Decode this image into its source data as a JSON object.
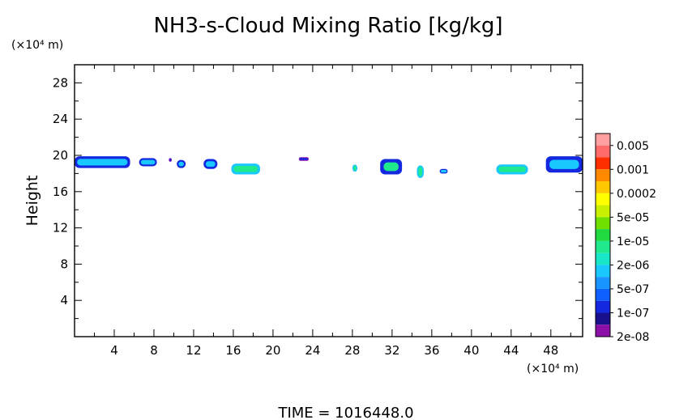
{
  "chart_data": {
    "type": "heatmap",
    "title": "NH3-s-Cloud Mixing Ratio [kg/kg]",
    "ylabel": "Height",
    "y_unit": "(×10⁴ m)",
    "x_unit": "(×10⁴ m)",
    "xlim": [
      0,
      51.2
    ],
    "ylim": [
      0,
      30
    ],
    "x_ticks": [
      4,
      8,
      12,
      16,
      20,
      24,
      28,
      32,
      36,
      40,
      44,
      48
    ],
    "y_ticks": [
      4,
      8,
      12,
      16,
      20,
      24,
      28
    ],
    "legend": {
      "placement": "right",
      "labels": [
        "0.005",
        "0.001",
        "0.0002",
        "5e-05",
        "1e-05",
        "2e-06",
        "5e-07",
        "1e-07",
        "2e-08"
      ],
      "colors": [
        "#ff9f9f",
        "#ff6a6a",
        "#ff2e00",
        "#ff8a00",
        "#ffc800",
        "#ffff00",
        "#c8f000",
        "#70e000",
        "#20d840",
        "#20e88c",
        "#18e8c8",
        "#18c8ff",
        "#1896ff",
        "#1060ff",
        "#1428e0",
        "#18108c",
        "#8c10a8"
      ]
    },
    "cloud_patches": [
      {
        "x0": 0.0,
        "x1": 5.6,
        "y0": 18.6,
        "y1": 19.9,
        "level": "1e-07",
        "core": "5e-07"
      },
      {
        "x0": 6.5,
        "x1": 8.3,
        "y0": 18.8,
        "y1": 19.7,
        "level": "1e-07",
        "core": "5e-07"
      },
      {
        "x0": 9.5,
        "x1": 9.8,
        "y0": 19.3,
        "y1": 19.7,
        "level": "2e-08",
        "core": "1e-07"
      },
      {
        "x0": 10.3,
        "x1": 11.2,
        "y0": 18.6,
        "y1": 19.5,
        "level": "1e-07",
        "core": "5e-07"
      },
      {
        "x0": 13.0,
        "x1": 14.4,
        "y0": 18.5,
        "y1": 19.6,
        "level": "1e-07",
        "core": "5e-07"
      },
      {
        "x0": 15.8,
        "x1": 18.7,
        "y0": 17.9,
        "y1": 19.1,
        "level": "5e-07",
        "core": "2e-06"
      },
      {
        "x0": 22.6,
        "x1": 23.6,
        "y0": 19.4,
        "y1": 19.8,
        "level": "2e-08",
        "core": "1e-07"
      },
      {
        "x0": 28.0,
        "x1": 28.5,
        "y0": 18.2,
        "y1": 19.0,
        "level": "5e-07",
        "core": "2e-06"
      },
      {
        "x0": 30.8,
        "x1": 33.0,
        "y0": 17.9,
        "y1": 19.6,
        "level": "1e-07",
        "core": "2e-06"
      },
      {
        "x0": 34.5,
        "x1": 35.2,
        "y0": 17.5,
        "y1": 18.9,
        "level": "5e-07",
        "core": "2e-06"
      },
      {
        "x0": 36.8,
        "x1": 37.6,
        "y0": 18.0,
        "y1": 18.5,
        "level": "1e-07",
        "core": "5e-07"
      },
      {
        "x0": 42.5,
        "x1": 45.7,
        "y0": 17.9,
        "y1": 19.0,
        "level": "5e-07",
        "core": "2e-06"
      },
      {
        "x0": 47.5,
        "x1": 51.2,
        "y0": 18.1,
        "y1": 19.9,
        "level": "1e-07",
        "core": "5e-07"
      }
    ]
  },
  "footer": {
    "time_text": "TIME = 1016448.0"
  }
}
